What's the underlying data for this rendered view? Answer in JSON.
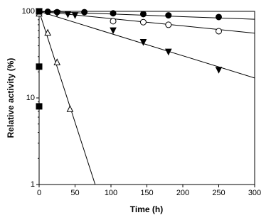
{
  "chart_data": {
    "type": "scatter",
    "x_label": "Time (h)",
    "y_label": "Relative activity (%)",
    "xlim": [
      0,
      300
    ],
    "xticks": [
      0,
      50,
      100,
      150,
      200,
      250,
      300
    ],
    "ylim": [
      1,
      100
    ],
    "yticks": [
      1,
      10,
      100
    ],
    "log_y": true,
    "color": "#000000",
    "series": [
      {
        "marker": "circle-filled",
        "x": [
          0,
          12,
          25,
          63,
          103,
          145,
          180,
          250
        ],
        "values": [
          100,
          99,
          98,
          98,
          95,
          93,
          90,
          86
        ],
        "fit": {
          "x": [
            0,
            300
          ],
          "values": [
            100,
            81
          ]
        }
      },
      {
        "marker": "circle-open",
        "x": [
          0,
          103,
          145,
          180,
          250
        ],
        "values": [
          100,
          77,
          75,
          70,
          59
        ],
        "fit": {
          "x": [
            0,
            300
          ],
          "values": [
            100,
            56
          ]
        }
      },
      {
        "marker": "triangle-down-filled",
        "x": [
          0,
          25,
          40,
          50,
          103,
          145,
          180,
          250
        ],
        "values": [
          100,
          95,
          92,
          90,
          60,
          44,
          34,
          21
        ],
        "fit": {
          "x": [
            0,
            300
          ],
          "values": [
            100,
            17
          ]
        }
      },
      {
        "marker": "triangle-up-open",
        "x": [
          0,
          12,
          25,
          43
        ],
        "values": [
          95,
          57,
          26,
          7.5
        ],
        "fit": {
          "x": [
            0,
            78
          ],
          "values": [
            100,
            1
          ]
        }
      },
      {
        "marker": "square-filled",
        "x": [
          0,
          0,
          0
        ],
        "values": [
          100,
          23,
          8
        ]
      }
    ]
  }
}
